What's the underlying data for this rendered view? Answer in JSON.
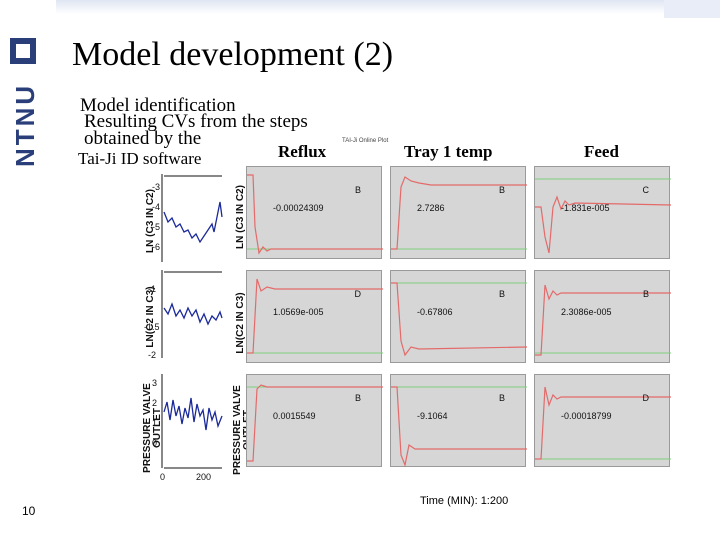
{
  "slide": {
    "title": "Model development (2)",
    "page_number": "10",
    "logo_text": "NTNU"
  },
  "text": {
    "bullet1": "Model identification",
    "bullet2": "Resulting CVs from the steps obtained by the",
    "tool": "Tai-Ji ID software",
    "small_caption": "TAI-Ji Online Plot"
  },
  "columns": [
    "Reflux",
    "Tray 1 temp",
    "Feed"
  ],
  "cv_labels": [
    "LN (C3 IN C2)",
    "LN(C2 IN C3)",
    "PRESSURE VALVE OUTLET"
  ],
  "response_panels": [
    {
      "tag": "B",
      "gain": "-0.00024309"
    },
    {
      "tag": "B",
      "gain": "2.7286"
    },
    {
      "tag": "C",
      "gain": "-1.831e-005"
    },
    {
      "tag": "D",
      "gain": "1.0569e-005"
    },
    {
      "tag": "B",
      "gain": "-0.67806"
    },
    {
      "tag": "B",
      "gain": "2.3086e-005"
    },
    {
      "tag": "B",
      "gain": "0.0015549"
    },
    {
      "tag": "B",
      "gain": "-9.1064"
    },
    {
      "tag": "D",
      "gain": "-0.00018799"
    }
  ],
  "left_plots": [
    {
      "yticks": [
        "-3",
        "-4",
        "-5",
        "-6"
      ]
    },
    {
      "yticks": [
        "-1",
        "-1.5",
        "-2"
      ]
    },
    {
      "yticks": [
        "3",
        "2",
        "1",
        "0"
      ]
    }
  ],
  "time_axis": {
    "label": "Time (MIN): 1:200",
    "ticks": [
      "0",
      "200"
    ]
  },
  "colors": {
    "title_blue": "#2a3f7a",
    "panel_bg": "#d6d6d6",
    "response_line": "#e46a6a",
    "reference_line": "#7fd07f",
    "measured_line": "#1a2a9a"
  }
}
